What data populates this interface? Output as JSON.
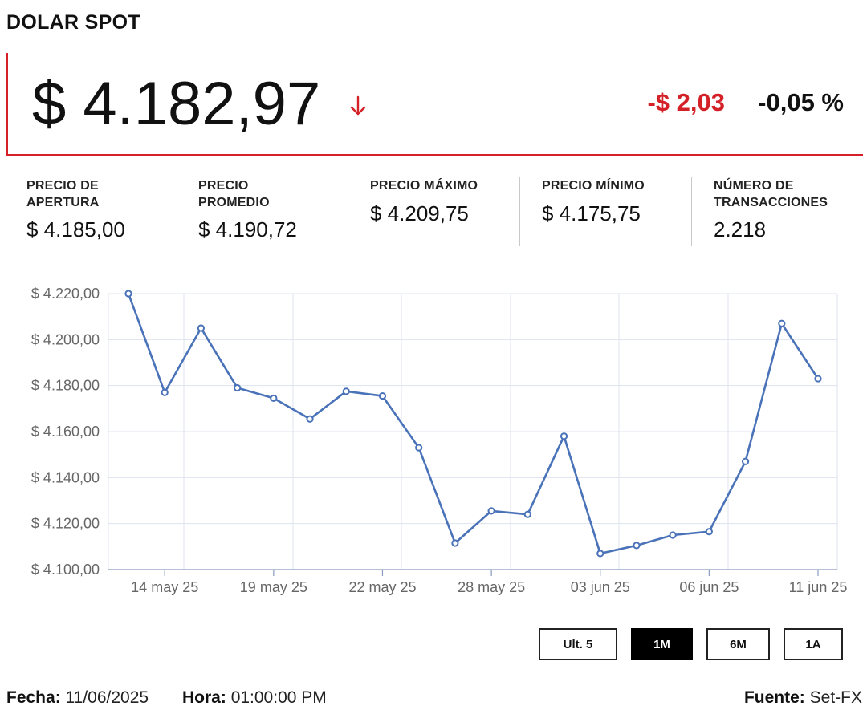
{
  "page": {
    "title": "DOLAR SPOT"
  },
  "price": {
    "value": "$ 4.182,97",
    "direction_icon": "arrow-down-icon",
    "change": "-$ 2,03",
    "change_percent": "-0,05 %",
    "down_color": "#d42027"
  },
  "stats": [
    {
      "label": "PRECIO DE\nAPERTURA",
      "value": "$ 4.185,00"
    },
    {
      "label": "PRECIO\nPROMEDIO",
      "value": "$ 4.190,72"
    },
    {
      "label": "PRECIO MÁXIMO",
      "value": "$ 4.209,75"
    },
    {
      "label": "PRECIO MÍNIMO",
      "value": "$ 4.175,75"
    },
    {
      "label": "NÚMERO DE\nTRANSACCIONES",
      "value": "2.218"
    }
  ],
  "chart_data": {
    "type": "line",
    "ylim": [
      4100,
      4220
    ],
    "yticks": [
      4100,
      4120,
      4140,
      4160,
      4180,
      4200,
      4220
    ],
    "ytick_labels": [
      "$ 4.100,00",
      "$ 4.120,00",
      "$ 4.140,00",
      "$ 4.160,00",
      "$ 4.180,00",
      "$ 4.200,00",
      "$ 4.220,00"
    ],
    "x": [
      "13 may 25",
      "14 may 25",
      "15 may 25",
      "16 may 25",
      "19 may 25",
      "20 may 25",
      "21 may 25",
      "22 may 25",
      "23 may 25",
      "27 may 25",
      "28 may 25",
      "29 may 25",
      "30 may 25",
      "03 jun 25",
      "04 jun 25",
      "05 jun 25",
      "06 jun 25",
      "09 jun 25",
      "10 jun 25",
      "11 jun 25"
    ],
    "xtick_labels": [
      "14 may 25",
      "19 may 25",
      "22 may 25",
      "28 may 25",
      "03 jun 25",
      "06 jun 25",
      "11 jun 25"
    ],
    "series": [
      {
        "color": "#4a72b8",
        "values": [
          4220,
          4177,
          4205,
          4179,
          4174.5,
          4165.5,
          4177.5,
          4175.5,
          4153,
          4111.5,
          4125.5,
          4124,
          4158,
          4107,
          4110.5,
          4115,
          4116.5,
          4147,
          4207,
          4183
        ]
      }
    ],
    "grid": true
  },
  "range_buttons": [
    {
      "label": "Ult. 5",
      "active": false
    },
    {
      "label": "1M",
      "active": true
    },
    {
      "label": "6M",
      "active": false
    },
    {
      "label": "1A",
      "active": false
    }
  ],
  "footer": {
    "date_label": "Fecha:",
    "date_value": "11/06/2025",
    "time_label": "Hora:",
    "time_value": "01:00:00 PM",
    "source_label": "Fuente:",
    "source_value": "Set-FX"
  }
}
